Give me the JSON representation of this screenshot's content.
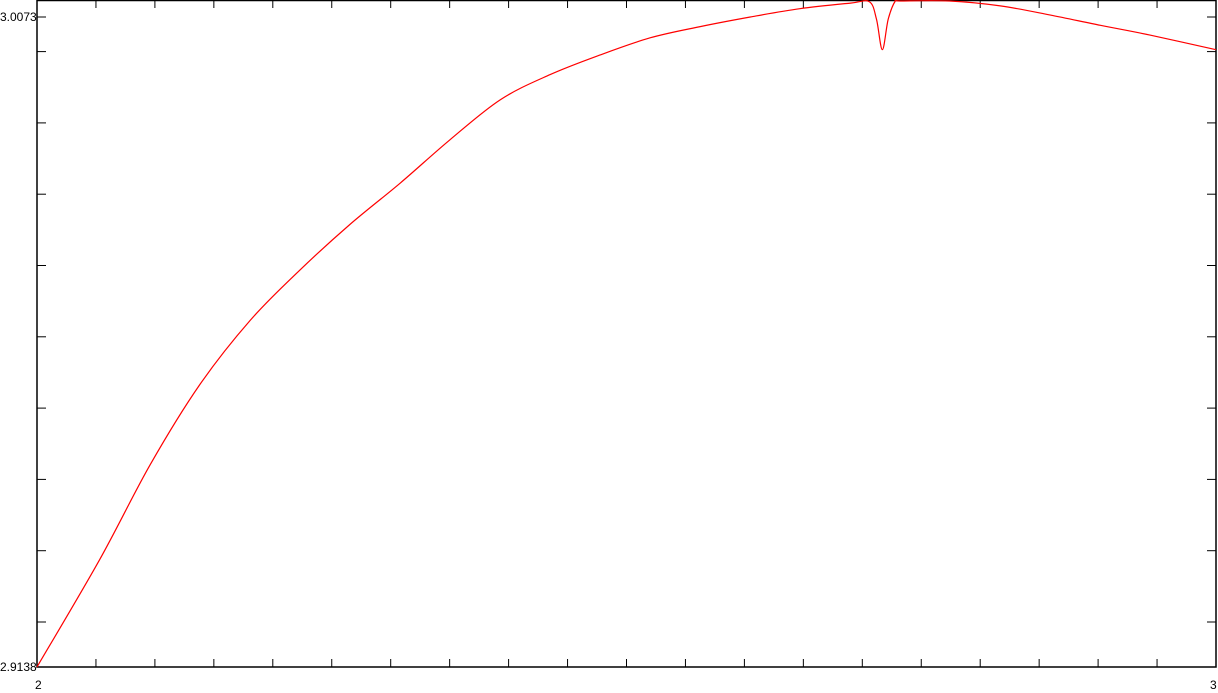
{
  "chart_data": {
    "type": "line",
    "title": "",
    "xlabel": "",
    "ylabel": "",
    "xlim": [
      2,
      3
    ],
    "ylim": [
      2.9138,
      3.0073
    ],
    "x_tick_labels": [
      "2",
      "3"
    ],
    "y_tick_labels": [
      "2.9138",
      "3.0073"
    ],
    "grid": false,
    "legend": "none",
    "line_color": "#ff0000",
    "axis_color": "#000000",
    "series": [
      {
        "x": [
          2.0,
          2.053,
          2.096,
          2.138,
          2.181,
          2.223,
          2.265,
          2.308,
          2.35,
          2.393,
          2.435,
          2.477,
          2.52,
          2.562,
          2.605,
          2.647,
          2.69,
          2.706,
          2.712,
          2.717,
          2.722,
          2.728,
          2.732,
          2.774,
          2.817,
          2.859,
          2.902,
          2.944,
          3.0
        ],
        "y": [
          2.9138,
          2.9292,
          2.9429,
          2.9544,
          2.9637,
          2.9709,
          2.9774,
          2.9834,
          2.9896,
          2.9954,
          2.999,
          3.0018,
          3.0043,
          3.0059,
          3.0073,
          3.0085,
          3.0093,
          3.0095,
          3.007,
          3.0026,
          3.007,
          3.0096,
          3.0096,
          3.0096,
          3.0089,
          3.0076,
          3.0061,
          3.0047,
          3.0026
        ]
      }
    ]
  }
}
